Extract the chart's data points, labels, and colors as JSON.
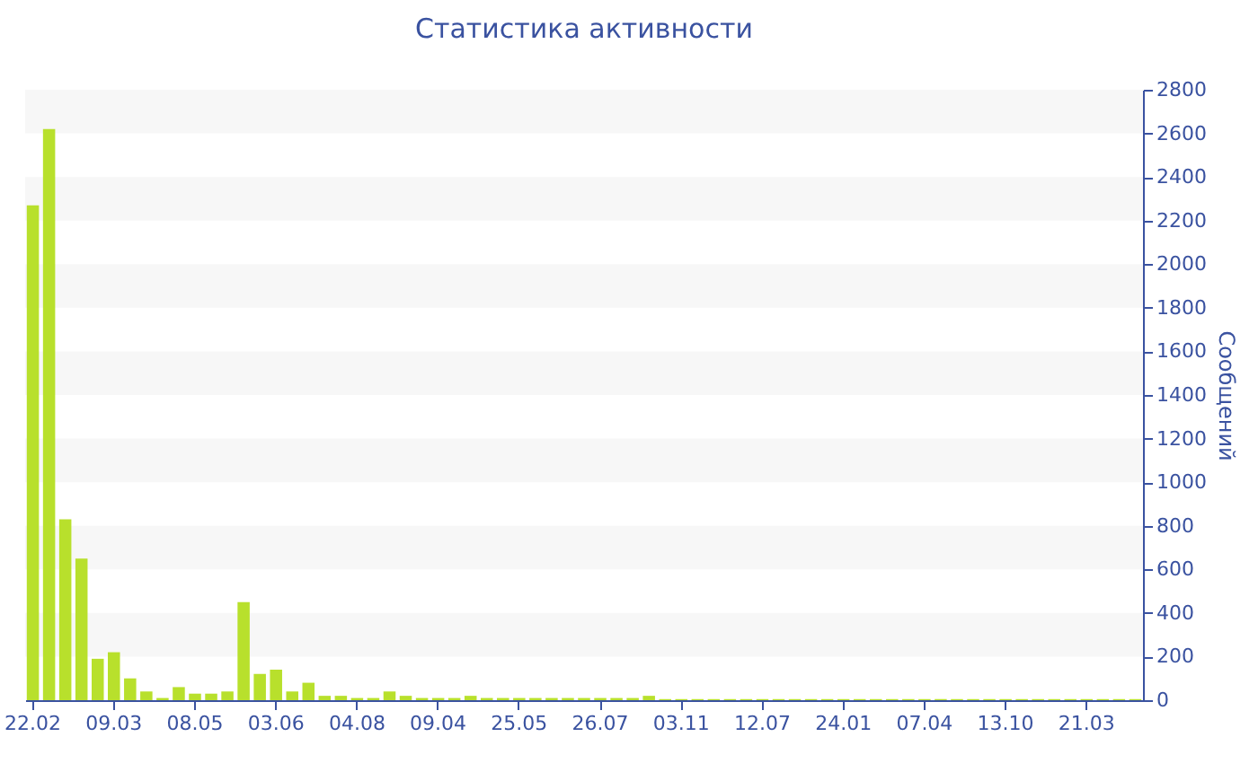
{
  "chart_data": {
    "type": "bar",
    "title": "Статистика активности",
    "ylabel": "Сообщений",
    "categories": [
      "22.02",
      null,
      null,
      null,
      null,
      "09.03",
      null,
      null,
      null,
      null,
      "08.05",
      null,
      null,
      null,
      null,
      "03.06",
      null,
      null,
      null,
      null,
      "04.08",
      null,
      null,
      null,
      null,
      "09.04",
      null,
      null,
      null,
      null,
      "25.05",
      null,
      null,
      null,
      null,
      "26.07",
      null,
      null,
      null,
      null,
      "03.11",
      null,
      null,
      null,
      null,
      "12.07",
      null,
      null,
      null,
      null,
      "24.01",
      null,
      null,
      null,
      null,
      "07.04",
      null,
      null,
      null,
      null,
      "13.10",
      null,
      null,
      null,
      null,
      "21.03",
      null,
      null,
      null
    ],
    "values": [
      2270,
      2620,
      830,
      650,
      190,
      220,
      100,
      40,
      10,
      60,
      30,
      30,
      40,
      450,
      120,
      140,
      40,
      80,
      20,
      20,
      10,
      10,
      40,
      20,
      10,
      10,
      10,
      20,
      10,
      10,
      10,
      10,
      10,
      10,
      10,
      10,
      10,
      10,
      20,
      5,
      5,
      5,
      5,
      5,
      5,
      5,
      5,
      5,
      5,
      5,
      5,
      5,
      5,
      5,
      5,
      5,
      5,
      5,
      5,
      5,
      5,
      5,
      5,
      5,
      5,
      5,
      5,
      5,
      5
    ],
    "color": "#b8e02c",
    "ylim": [
      0,
      2800
    ],
    "yticks": [
      0,
      200,
      400,
      600,
      800,
      1000,
      1200,
      1400,
      1600,
      1800,
      2000,
      2200,
      2400,
      2600,
      2800
    ],
    "bands": [
      {
        "axis": "y",
        "from": 200,
        "to": 400,
        "color": "#f7f7f7"
      },
      {
        "axis": "y",
        "from": 600,
        "to": 800,
        "color": "#f7f7f7"
      },
      {
        "axis": "y",
        "from": 1000,
        "to": 1200,
        "color": "#f7f7f7"
      },
      {
        "axis": "y",
        "from": 1400,
        "to": 1600,
        "color": "#f7f7f7"
      },
      {
        "axis": "y",
        "from": 1800,
        "to": 2000,
        "color": "#f7f7f7"
      },
      {
        "axis": "y",
        "from": 2200,
        "to": 2400,
        "color": "#f7f7f7"
      },
      {
        "axis": "y",
        "from": 2600,
        "to": 2800,
        "color": "#f7f7f7"
      }
    ]
  }
}
